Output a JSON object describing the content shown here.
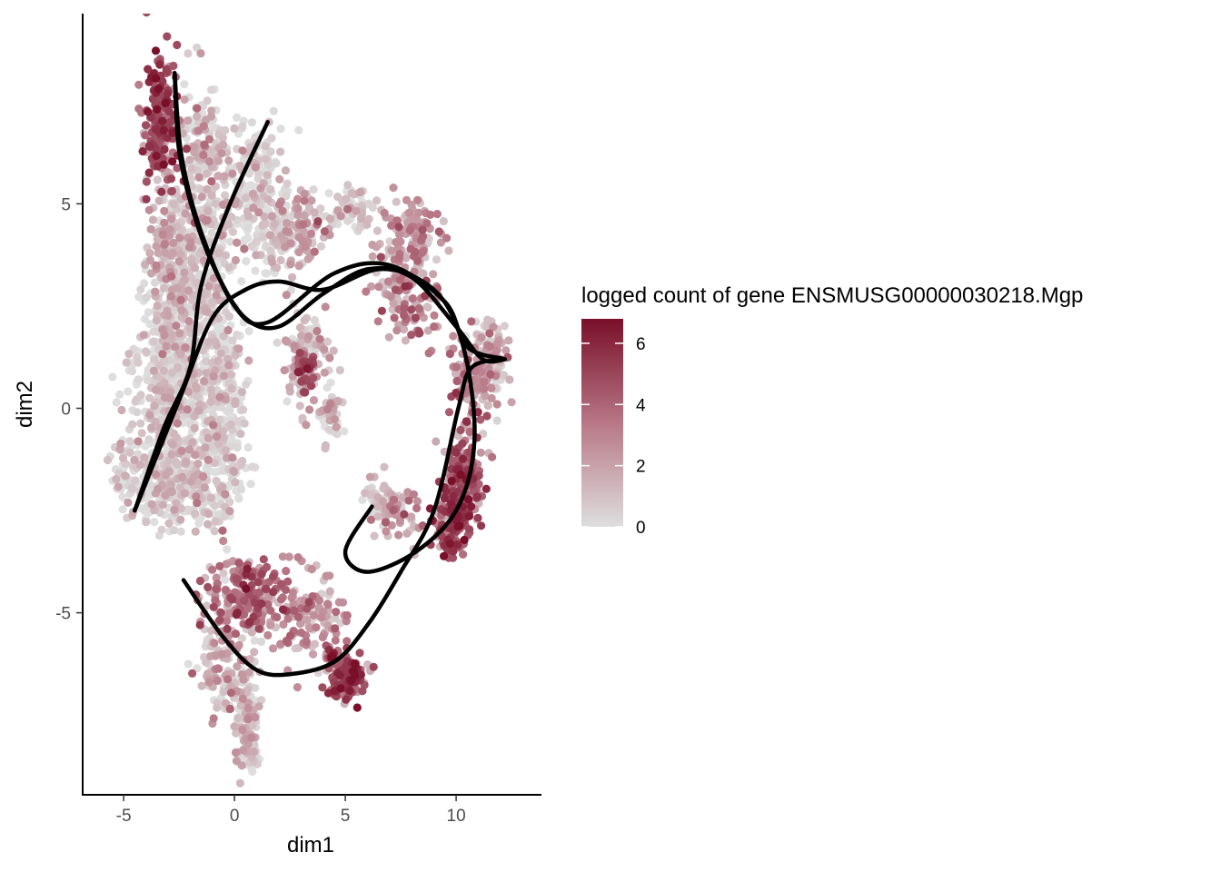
{
  "chart_data": {
    "type": "scatter",
    "xlabel": "dim1",
    "ylabel": "dim2",
    "xlim": [
      -6.85,
      13.85
    ],
    "ylim": [
      -9.45,
      9.65
    ],
    "x_ticks": [
      -5,
      0,
      5,
      10
    ],
    "x_tick_labels": [
      "-5",
      "0",
      "5",
      "10"
    ],
    "y_ticks": [
      -5,
      0,
      5
    ],
    "y_tick_labels": [
      "-5",
      "0",
      "5"
    ],
    "grid": false,
    "legend": {
      "title": "logged count of gene ENSMUSG00000030218.Mgp",
      "position": "right",
      "range": [
        0,
        6.8
      ],
      "ticks": [
        0,
        2,
        4,
        6
      ],
      "tick_labels": [
        "0",
        "2",
        "4",
        "6"
      ],
      "low_color": "#dedede",
      "high_color": "#7a0f2a"
    },
    "point_clusters": [
      {
        "cx": -3.3,
        "cy": 7.0,
        "sx": 0.55,
        "sy": 1.2,
        "n": 220,
        "level": 4.8
      },
      {
        "cx": -1.3,
        "cy": 6.2,
        "sx": 0.7,
        "sy": 1.1,
        "n": 160,
        "level": 0.8
      },
      {
        "cx": 0.8,
        "cy": 5.6,
        "sx": 0.9,
        "sy": 1.0,
        "n": 160,
        "level": 0.2
      },
      {
        "cx": -2.8,
        "cy": 3.8,
        "sx": 0.6,
        "sy": 1.3,
        "n": 200,
        "level": 1.2
      },
      {
        "cx": -1.3,
        "cy": 3.2,
        "sx": 0.9,
        "sy": 1.5,
        "n": 300,
        "level": 0.6
      },
      {
        "cx": -2.8,
        "cy": 0.5,
        "sx": 1.2,
        "sy": 1.6,
        "n": 600,
        "level": 0.3
      },
      {
        "cx": -0.6,
        "cy": -0.5,
        "sx": 0.7,
        "sy": 1.6,
        "n": 300,
        "level": 0.4
      },
      {
        "cx": -4.8,
        "cy": -1.5,
        "sx": 0.5,
        "sy": 0.6,
        "n": 60,
        "level": 0.3
      },
      {
        "cx": -2.5,
        "cy": -2.0,
        "sx": 1.2,
        "sy": 0.6,
        "n": 220,
        "level": 0.3
      },
      {
        "cx": 1.8,
        "cy": 4.2,
        "sx": 1.0,
        "sy": 0.7,
        "n": 100,
        "level": 0.4
      },
      {
        "cx": 3.2,
        "cy": 4.5,
        "sx": 0.8,
        "sy": 0.6,
        "n": 80,
        "level": 2.0
      },
      {
        "cx": 5.4,
        "cy": 4.9,
        "sx": 0.6,
        "sy": 0.3,
        "n": 70,
        "level": 0.4
      },
      {
        "cx": 8.0,
        "cy": 4.1,
        "sx": 0.8,
        "sy": 0.7,
        "n": 120,
        "level": 2.2
      },
      {
        "cx": 7.8,
        "cy": 2.7,
        "sx": 1.0,
        "sy": 0.7,
        "n": 110,
        "level": 3.0
      },
      {
        "cx": 3.3,
        "cy": 1.2,
        "sx": 0.7,
        "sy": 0.9,
        "n": 120,
        "level": 1.2
      },
      {
        "cx": 3.2,
        "cy": 1.0,
        "sx": 0.35,
        "sy": 0.3,
        "n": 50,
        "level": 4.5
      },
      {
        "cx": 4.4,
        "cy": 0.0,
        "sx": 0.4,
        "sy": 0.5,
        "n": 50,
        "level": 0.6
      },
      {
        "cx": 11.6,
        "cy": 1.2,
        "sx": 0.5,
        "sy": 0.7,
        "n": 110,
        "level": 1.5
      },
      {
        "cx": 10.6,
        "cy": 0.8,
        "sx": 0.6,
        "sy": 0.6,
        "n": 80,
        "level": 2.8
      },
      {
        "cx": 10.5,
        "cy": -1.5,
        "sx": 0.55,
        "sy": 1.0,
        "n": 130,
        "level": 4.0
      },
      {
        "cx": 9.7,
        "cy": -2.8,
        "sx": 0.55,
        "sy": 0.5,
        "n": 110,
        "level": 4.8
      },
      {
        "cx": 10.1,
        "cy": -2.0,
        "sx": 0.45,
        "sy": 0.8,
        "n": 90,
        "level": 5.2
      },
      {
        "cx": 6.5,
        "cy": -2.2,
        "sx": 0.5,
        "sy": 0.4,
        "n": 50,
        "level": 0.3
      },
      {
        "cx": 7.5,
        "cy": -2.6,
        "sx": 0.6,
        "sy": 0.5,
        "n": 50,
        "level": 2.2
      },
      {
        "cx": 0.6,
        "cy": -4.5,
        "sx": 1.3,
        "sy": 0.6,
        "n": 220,
        "level": 3.8
      },
      {
        "cx": 3.5,
        "cy": -5.2,
        "sx": 1.0,
        "sy": 0.7,
        "n": 120,
        "level": 2.4
      },
      {
        "cx": 5.0,
        "cy": -6.5,
        "sx": 0.6,
        "sy": 0.4,
        "n": 140,
        "level": 5.0
      },
      {
        "cx": -0.6,
        "cy": -6.2,
        "sx": 0.8,
        "sy": 0.8,
        "n": 120,
        "level": 1.4
      },
      {
        "cx": 0.5,
        "cy": -7.6,
        "sx": 0.4,
        "sy": 0.9,
        "n": 110,
        "level": 1.0
      },
      {
        "cx": 0.8,
        "cy": -8.5,
        "sx": 0.25,
        "sy": 0.3,
        "n": 30,
        "level": 0.3
      }
    ],
    "curves": [
      {
        "points": [
          [
            -2.7,
            8.2
          ],
          [
            -2.5,
            6.3
          ],
          [
            -1.8,
            4.7
          ],
          [
            -0.8,
            3.3
          ],
          [
            0.5,
            2.2
          ],
          [
            2.0,
            2.0
          ],
          [
            4.0,
            2.8
          ],
          [
            6.0,
            3.4
          ],
          [
            8.0,
            3.2
          ],
          [
            10.0,
            2.0
          ],
          [
            11.2,
            1.2
          ],
          [
            12.2,
            1.2
          ]
        ]
      },
      {
        "points": [
          [
            -2.7,
            8.2
          ],
          [
            -2.4,
            6.2
          ],
          [
            -1.5,
            4.3
          ],
          [
            0.0,
            2.5
          ],
          [
            1.5,
            2.1
          ],
          [
            4.5,
            3.3
          ],
          [
            7.0,
            3.5
          ],
          [
            9.5,
            2.6
          ],
          [
            10.5,
            1.5
          ],
          [
            12.2,
            1.2
          ]
        ]
      },
      {
        "points": [
          [
            -4.5,
            -2.5
          ],
          [
            -3.2,
            -0.5
          ],
          [
            -2.0,
            1.0
          ],
          [
            -1.5,
            3.0
          ],
          [
            -0.2,
            5.0
          ],
          [
            1.5,
            7.0
          ]
        ]
      },
      {
        "points": [
          [
            -4.5,
            -2.5
          ],
          [
            -2.5,
            0.2
          ],
          [
            -1.0,
            2.2
          ],
          [
            0.5,
            2.9
          ],
          [
            2.0,
            3.1
          ],
          [
            4.0,
            2.9
          ],
          [
            6.5,
            3.4
          ],
          [
            8.5,
            3.1
          ],
          [
            9.8,
            2.3
          ],
          [
            10.6,
            0.8
          ],
          [
            10.8,
            -1.0
          ],
          [
            10.0,
            -2.5
          ],
          [
            8.2,
            -3.5
          ],
          [
            6.0,
            -4.0
          ],
          [
            5.0,
            -3.5
          ],
          [
            6.2,
            -2.4
          ]
        ]
      },
      {
        "points": [
          [
            -2.3,
            -4.2
          ],
          [
            -0.5,
            -5.6
          ],
          [
            1.0,
            -6.4
          ],
          [
            2.5,
            -6.5
          ],
          [
            4.5,
            -6.2
          ],
          [
            6.0,
            -5.3
          ],
          [
            7.5,
            -4.0
          ],
          [
            9.0,
            -2.5
          ],
          [
            10.1,
            0.0
          ],
          [
            10.7,
            1.0
          ],
          [
            12.2,
            1.2
          ]
        ]
      }
    ]
  }
}
